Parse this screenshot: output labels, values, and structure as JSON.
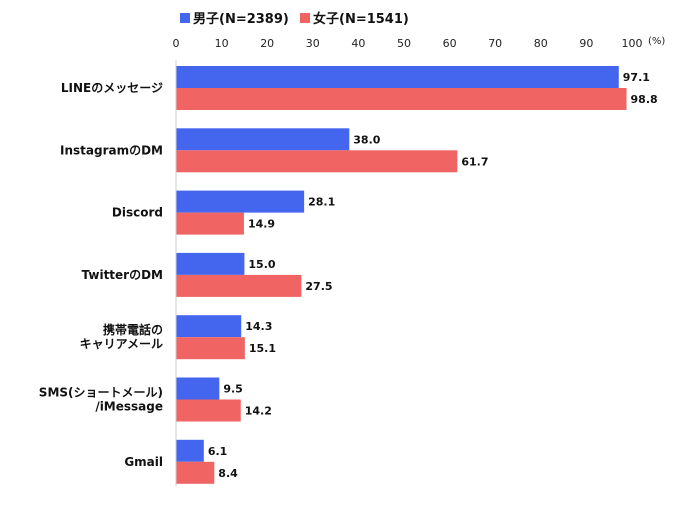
{
  "chart_data": {
    "type": "bar",
    "orientation": "horizontal",
    "unit": "(%)",
    "xlim": [
      0,
      100
    ],
    "ticks": [
      0,
      10,
      20,
      30,
      40,
      50,
      60,
      70,
      80,
      90,
      100
    ],
    "grid": false,
    "legend_position": "top-left",
    "categories": [
      [
        "LINEのメッセージ"
      ],
      [
        "InstagramのDM"
      ],
      [
        "Discord"
      ],
      [
        "TwitterのDM"
      ],
      [
        "携帯電話の",
        "キャリアメール"
      ],
      [
        "SMS(ショートメール)",
        "/iMessage"
      ],
      [
        "Gmail"
      ]
    ],
    "series": [
      {
        "name": "男子(N=2389)",
        "color": "#4466ee",
        "values": [
          97.1,
          38.0,
          28.1,
          15.0,
          14.3,
          9.5,
          6.1
        ]
      },
      {
        "name": "女子(N=1541)",
        "color": "#f06464",
        "values": [
          98.8,
          61.7,
          14.9,
          27.5,
          15.1,
          14.2,
          8.4
        ]
      }
    ]
  }
}
